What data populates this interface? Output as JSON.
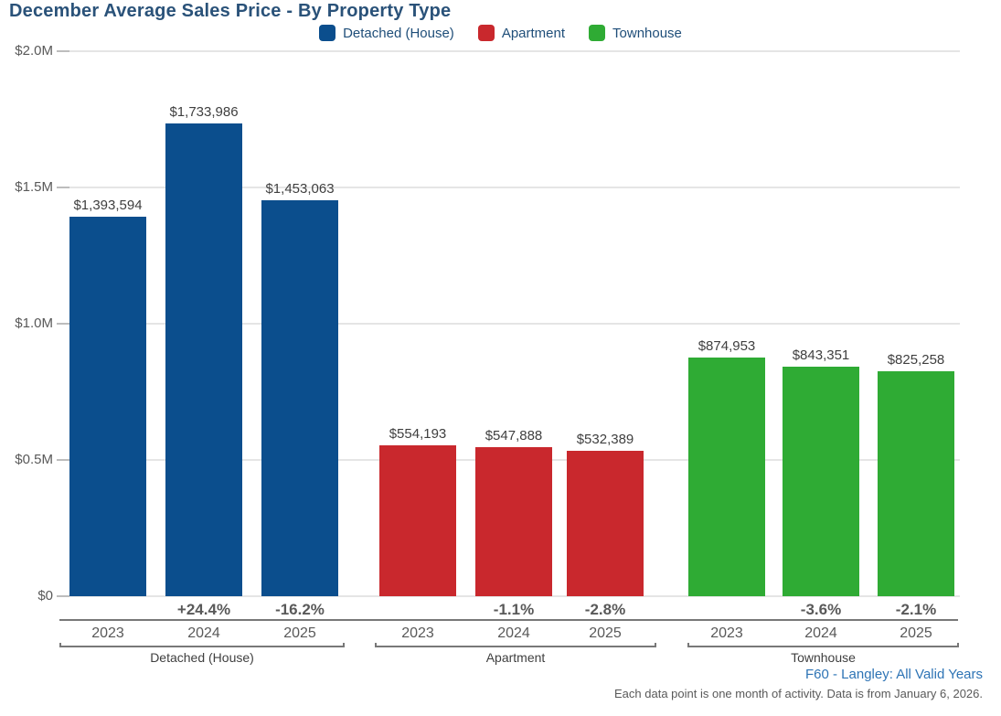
{
  "title": "December Average Sales Price - By Property Type",
  "colors": {
    "detached": "#0b4e8d",
    "apartment": "#c9282d",
    "townhouse": "#2fab34",
    "title_text": "#2a5279",
    "legend_text": "#1f4e79",
    "axis_text": "#595959",
    "value_text": "#3f3f3f",
    "grid": "#e5e5e5",
    "axis_line": "#787878",
    "footer_link": "#2e74b5"
  },
  "legend": [
    {
      "label": "Detached (House)",
      "color": "#0b4e8d"
    },
    {
      "label": "Apartment",
      "color": "#c9282d"
    },
    {
      "label": "Townhouse",
      "color": "#2fab34"
    }
  ],
  "chart_data": {
    "type": "bar",
    "title": "December Average Sales Price - By Property Type",
    "xlabel": "",
    "ylabel": "",
    "ylim": [
      0,
      2000000
    ],
    "grid": true,
    "legend_position": "top-center",
    "yticks": [
      {
        "label": "$2.0M",
        "value": 2000000
      },
      {
        "label": "$1.5M",
        "value": 1500000
      },
      {
        "label": "$1.0M",
        "value": 1000000
      },
      {
        "label": "$0.5M",
        "value": 500000
      },
      {
        "label": "$0",
        "value": 0
      }
    ],
    "categories": [
      "2023",
      "2024",
      "2025"
    ],
    "groups": [
      {
        "name": "Detached (House)",
        "color": "#0b4e8d",
        "bars": [
          {
            "year": "2023",
            "value": 1393594,
            "label": "$1,393,594",
            "change": null
          },
          {
            "year": "2024",
            "value": 1733986,
            "label": "$1,733,986",
            "change": "+24.4%"
          },
          {
            "year": "2025",
            "value": 1453063,
            "label": "$1,453,063",
            "change": "-16.2%"
          }
        ]
      },
      {
        "name": "Apartment",
        "color": "#c9282d",
        "bars": [
          {
            "year": "2023",
            "value": 554193,
            "label": "$554,193",
            "change": null
          },
          {
            "year": "2024",
            "value": 547888,
            "label": "$547,888",
            "change": "-1.1%"
          },
          {
            "year": "2025",
            "value": 532389,
            "label": "$532,389",
            "change": "-2.8%"
          }
        ]
      },
      {
        "name": "Townhouse",
        "color": "#2fab34",
        "bars": [
          {
            "year": "2023",
            "value": 874953,
            "label": "$874,953",
            "change": null
          },
          {
            "year": "2024",
            "value": 843351,
            "label": "$843,351",
            "change": "-3.6%"
          },
          {
            "year": "2025",
            "value": 825258,
            "label": "$825,258",
            "change": "-2.1%"
          }
        ]
      }
    ]
  },
  "footer": {
    "source": "F60 - Langley: All Valid Years",
    "note": "Each data point is one month of activity. Data is from January 6, 2026."
  }
}
